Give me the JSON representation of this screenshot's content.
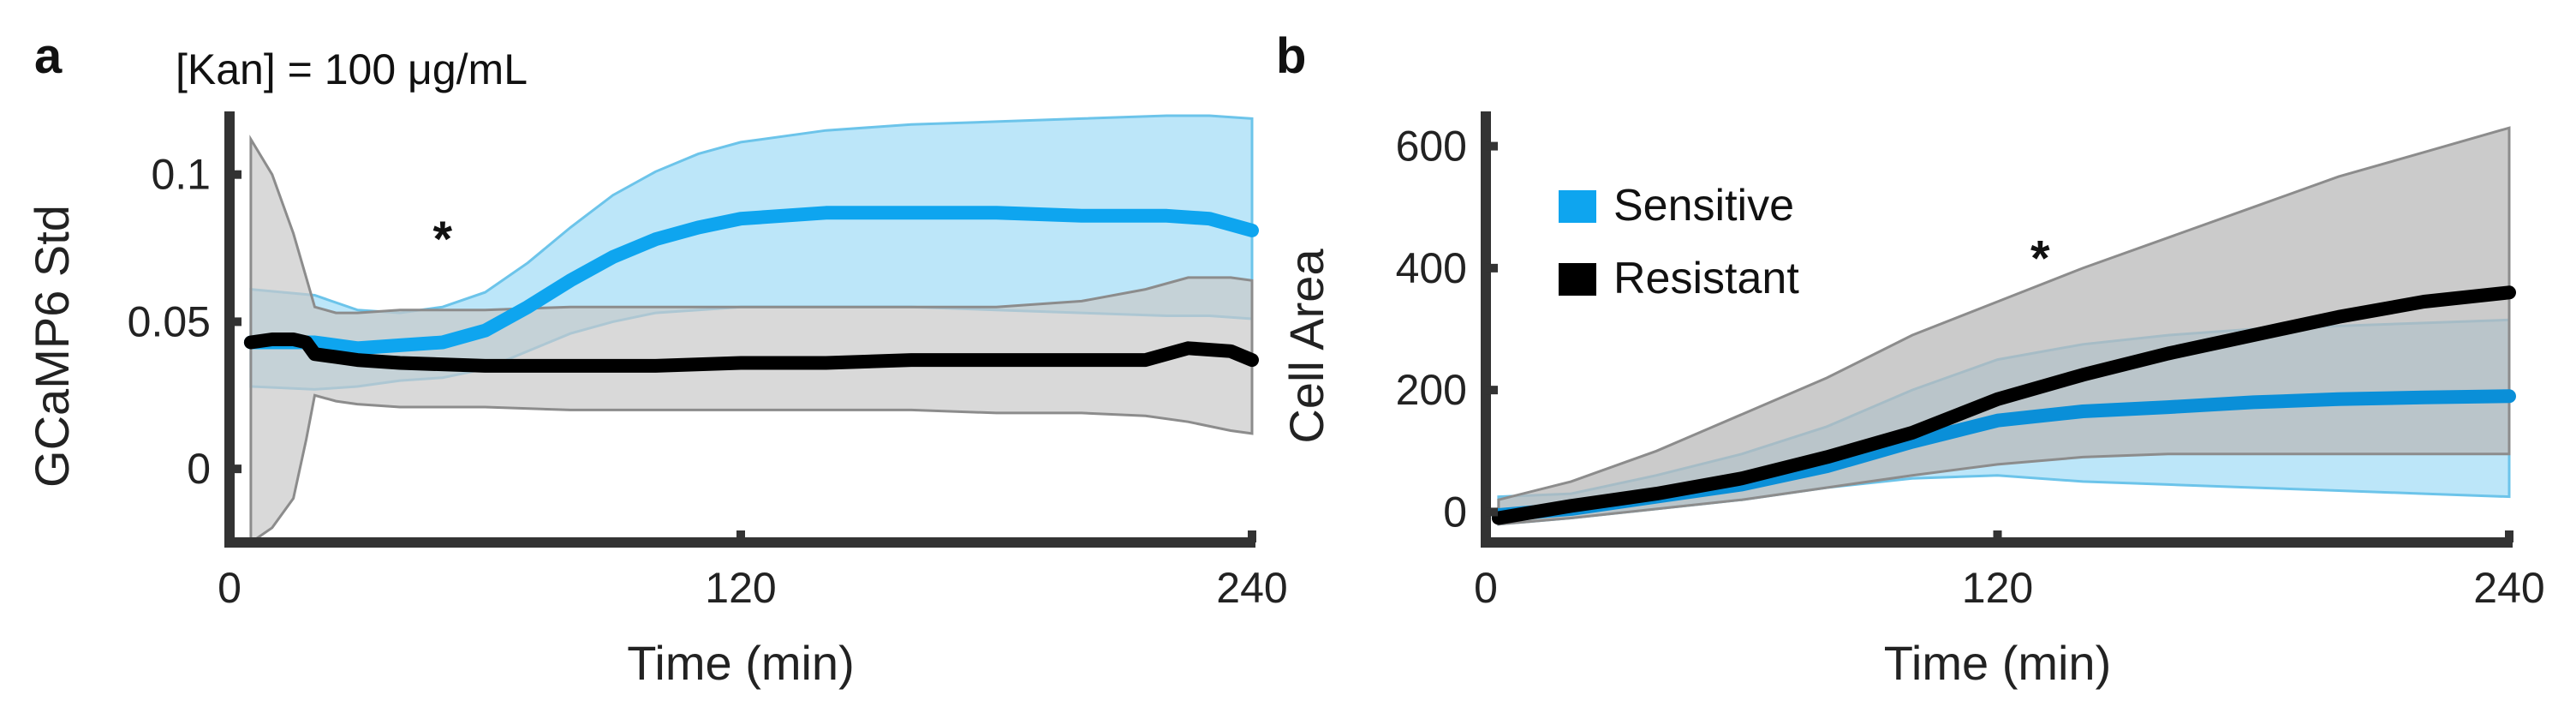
{
  "chart_data": [
    {
      "panel_label": "a",
      "type": "line",
      "title": "[Kan] = 100 μg/mL",
      "xlabel": "Time (min)",
      "ylabel": "GCaMP6 Std",
      "xlim": [
        0,
        240
      ],
      "ylim": [
        -0.025,
        0.12
      ],
      "xticks": [
        0,
        120,
        240
      ],
      "xtick_labels": [
        "0",
        "120",
        "240"
      ],
      "yticks": [
        0,
        0.05,
        0.1
      ],
      "ytick_labels": [
        "0",
        "0.05",
        "0.1"
      ],
      "annotation": "*",
      "annotation_pos": {
        "x": 50,
        "y": 0.081
      },
      "series": [
        {
          "name": "Sensitive",
          "color": "#0ea5ef",
          "band_color": "#9fdcf7",
          "band_edge_color": "#6cc4ea",
          "x": [
            5,
            20,
            30,
            40,
            50,
            60,
            70,
            80,
            90,
            100,
            110,
            120,
            140,
            160,
            180,
            200,
            220,
            230,
            240
          ],
          "mean": [
            0.043,
            0.043,
            0.041,
            0.042,
            0.043,
            0.047,
            0.055,
            0.064,
            0.072,
            0.078,
            0.082,
            0.085,
            0.087,
            0.087,
            0.087,
            0.086,
            0.086,
            0.085,
            0.081
          ],
          "upper": [
            0.061,
            0.059,
            0.054,
            0.053,
            0.055,
            0.06,
            0.07,
            0.082,
            0.093,
            0.101,
            0.107,
            0.111,
            0.115,
            0.117,
            0.118,
            0.119,
            0.12,
            0.12,
            0.119
          ],
          "lower": [
            0.028,
            0.027,
            0.028,
            0.03,
            0.031,
            0.034,
            0.04,
            0.046,
            0.05,
            0.053,
            0.054,
            0.055,
            0.055,
            0.055,
            0.054,
            0.053,
            0.052,
            0.052,
            0.051
          ]
        },
        {
          "name": "Resistant",
          "color": "#000000",
          "band_color": "#c9c9c9",
          "band_edge_color": "#8c8c8c",
          "x": [
            5,
            10,
            15,
            18,
            20,
            25,
            30,
            40,
            60,
            80,
            100,
            120,
            140,
            160,
            180,
            200,
            215,
            225,
            235,
            240
          ],
          "mean": [
            0.043,
            0.044,
            0.044,
            0.043,
            0.039,
            0.038,
            0.037,
            0.036,
            0.035,
            0.035,
            0.035,
            0.036,
            0.036,
            0.037,
            0.037,
            0.037,
            0.037,
            0.041,
            0.04,
            0.037
          ],
          "upper": [
            0.112,
            0.1,
            0.08,
            0.065,
            0.055,
            0.053,
            0.053,
            0.054,
            0.054,
            0.055,
            0.055,
            0.055,
            0.055,
            0.055,
            0.055,
            0.057,
            0.061,
            0.065,
            0.065,
            0.064
          ],
          "lower": [
            -0.025,
            -0.02,
            -0.01,
            0.01,
            0.025,
            0.023,
            0.022,
            0.021,
            0.021,
            0.02,
            0.02,
            0.02,
            0.02,
            0.02,
            0.019,
            0.019,
            0.018,
            0.016,
            0.013,
            0.012
          ]
        }
      ]
    },
    {
      "panel_label": "b",
      "type": "line",
      "title": "",
      "xlabel": "Time (min)",
      "ylabel": "Cell Area",
      "xlim": [
        0,
        240
      ],
      "ylim": [
        -50,
        650
      ],
      "xticks": [
        0,
        120,
        240
      ],
      "xtick_labels": [
        "0",
        "120",
        "240"
      ],
      "yticks": [
        0,
        200,
        400,
        600
      ],
      "ytick_labels": [
        "0",
        "200",
        "400",
        "600"
      ],
      "annotation": "*",
      "annotation_pos": {
        "x": 130,
        "y": 430
      },
      "legend": {
        "position": "top-left",
        "entries": [
          {
            "label": "Sensitive",
            "color": "#0ea5ef"
          },
          {
            "label": "Resistant",
            "color": "#000000"
          }
        ]
      },
      "series": [
        {
          "name": "Sensitive",
          "color": "#0a8fd8",
          "band_color": "#9fdcf7",
          "band_edge_color": "#6cc4ea",
          "x": [
            3,
            20,
            40,
            60,
            80,
            100,
            120,
            140,
            160,
            180,
            200,
            220,
            240
          ],
          "mean": [
            -5,
            5,
            25,
            45,
            75,
            115,
            150,
            165,
            172,
            180,
            185,
            188,
            190
          ],
          "upper": [
            25,
            30,
            60,
            95,
            140,
            200,
            250,
            275,
            290,
            300,
            305,
            310,
            315
          ],
          "lower": [
            -20,
            -10,
            5,
            20,
            40,
            55,
            60,
            50,
            45,
            40,
            35,
            30,
            25
          ]
        },
        {
          "name": "Resistant",
          "color": "#000000",
          "band_color": "#b9b9b9",
          "band_edge_color": "#8c8c8c",
          "x": [
            3,
            20,
            40,
            60,
            80,
            100,
            120,
            140,
            160,
            180,
            200,
            220,
            240
          ],
          "mean": [
            -10,
            10,
            30,
            55,
            90,
            130,
            185,
            225,
            260,
            290,
            320,
            345,
            360
          ],
          "upper": [
            20,
            50,
            100,
            160,
            220,
            290,
            345,
            400,
            450,
            500,
            550,
            590,
            630
          ],
          "lower": [
            -20,
            -10,
            5,
            20,
            40,
            60,
            78,
            90,
            95,
            95,
            95,
            95,
            95
          ]
        }
      ]
    }
  ]
}
